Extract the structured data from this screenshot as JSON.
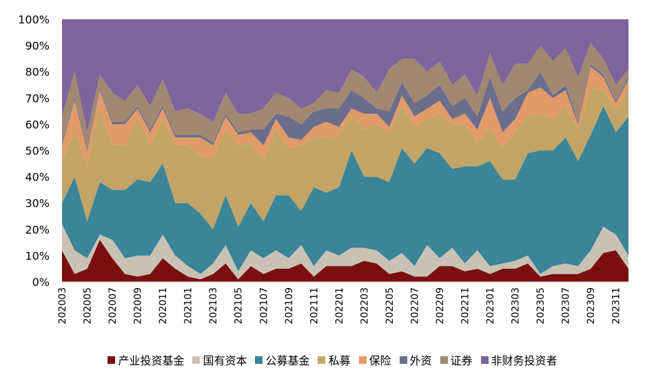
{
  "chart_data": {
    "type": "area",
    "stacked": "percent",
    "x": [
      "202003",
      "202004",
      "202005",
      "202006",
      "202007",
      "202008",
      "202009",
      "202010",
      "202011",
      "202012",
      "202101",
      "202102",
      "202103",
      "202104",
      "202105",
      "202106",
      "202107",
      "202108",
      "202109",
      "202110",
      "202111",
      "202112",
      "202201",
      "202202",
      "202203",
      "202204",
      "202205",
      "202206",
      "202207",
      "202208",
      "202209",
      "202210",
      "202211",
      "202212",
      "202301",
      "202302",
      "202303",
      "202304",
      "202305",
      "202306",
      "202307",
      "202308",
      "202309",
      "202310",
      "202311",
      "202312"
    ],
    "x_tick_labels": [
      "202003",
      "202005",
      "202007",
      "202009",
      "202011",
      "202101",
      "202103",
      "202105",
      "202107",
      "202109",
      "202111",
      "202201",
      "202203",
      "202205",
      "202207",
      "202209",
      "202211",
      "202301",
      "202303",
      "202305",
      "202307",
      "202309",
      "202311"
    ],
    "y_ticks": [
      "0%",
      "10%",
      "20%",
      "30%",
      "40%",
      "50%",
      "60%",
      "70%",
      "80%",
      "90%",
      "100%"
    ],
    "ylim": [
      0,
      100
    ],
    "grid": false,
    "legend_position": "bottom",
    "series": [
      {
        "name": "产业投资基金",
        "color": "#7B0F0F",
        "values": [
          12,
          3,
          5,
          16,
          9,
          3,
          2,
          3,
          9,
          5,
          2,
          1,
          3,
          7,
          1,
          6,
          3,
          5,
          5,
          7,
          2,
          6,
          6,
          6,
          8,
          7,
          3,
          4,
          2,
          2,
          6,
          6,
          4,
          5,
          3,
          5,
          5,
          7,
          2,
          3,
          3,
          3,
          5,
          11,
          12,
          5
        ]
      },
      {
        "name": "国有资本",
        "color": "#C9C2B4",
        "values": [
          10,
          9,
          4,
          2,
          7,
          6,
          8,
          7,
          9,
          5,
          4,
          2,
          4,
          7,
          3,
          6,
          6,
          7,
          4,
          7,
          4,
          6,
          4,
          7,
          5,
          5,
          5,
          7,
          4,
          12,
          3,
          7,
          3,
          7,
          3,
          2,
          3,
          3,
          1,
          3,
          4,
          3,
          7,
          10,
          6,
          5
        ]
      },
      {
        "name": "公募基金",
        "color": "#3A8598",
        "values": [
          8,
          28,
          14,
          20,
          19,
          26,
          29,
          28,
          27,
          20,
          24,
          23,
          13,
          19,
          17,
          18,
          14,
          21,
          24,
          13,
          30,
          22,
          26,
          37,
          27,
          28,
          30,
          40,
          39,
          37,
          40,
          30,
          37,
          32,
          40,
          32,
          31,
          39,
          47,
          44,
          48,
          40,
          44,
          46,
          39,
          53
        ]
      },
      {
        "name": "私募",
        "color": "#C2A467",
        "values": [
          16,
          17,
          21,
          29,
          17,
          17,
          24,
          14,
          17,
          22,
          22,
          22,
          27,
          25,
          31,
          23,
          23,
          25,
          18,
          25,
          19,
          21,
          20,
          13,
          18,
          20,
          19,
          16,
          14,
          11,
          15,
          17,
          16,
          9,
          13,
          12,
          18,
          14,
          14,
          12,
          12,
          12,
          18,
          6,
          8,
          11
        ]
      },
      {
        "name": "保险",
        "color": "#E29A68",
        "values": [
          6,
          12,
          6,
          6,
          8,
          8,
          3,
          5,
          4,
          3,
          3,
          7,
          5,
          5,
          4,
          4,
          6,
          4,
          4,
          2,
          4,
          6,
          3,
          3,
          6,
          4,
          2,
          4,
          4,
          4,
          5,
          2,
          4,
          5,
          11,
          6,
          5,
          9,
          10,
          8,
          6,
          2,
          8,
          5,
          3,
          3
        ]
      },
      {
        "name": "外资",
        "color": "#6B6D8C",
        "values": [
          1,
          1,
          1,
          1,
          1,
          1,
          1,
          1,
          1,
          1,
          1,
          1,
          1,
          1,
          1,
          1,
          6,
          2,
          8,
          6,
          6,
          5,
          7,
          7,
          6,
          2,
          6,
          5,
          5,
          5,
          6,
          5,
          6,
          5,
          8,
          8,
          8,
          1,
          6,
          1,
          2,
          1,
          1,
          1,
          1,
          1
        ]
      },
      {
        "name": "证券",
        "color": "#A28870",
        "values": [
          10,
          10,
          6,
          5,
          11,
          8,
          8,
          9,
          10,
          9,
          10,
          8,
          8,
          8,
          7,
          6,
          8,
          8,
          7,
          6,
          3,
          7,
          6,
          8,
          8,
          6,
          16,
          9,
          17,
          9,
          9,
          8,
          9,
          8,
          9,
          10,
          13,
          10,
          10,
          13,
          14,
          17,
          8,
          6,
          6,
          3
        ]
      },
      {
        "name": "非财务投资者",
        "color": "#7D649C",
        "values": [
          37,
          20,
          43,
          21,
          28,
          31,
          25,
          33,
          23,
          35,
          34,
          36,
          39,
          28,
          36,
          36,
          34,
          28,
          30,
          34,
          32,
          27,
          28,
          19,
          22,
          28,
          19,
          15,
          15,
          20,
          16,
          25,
          21,
          29,
          13,
          25,
          17,
          17,
          10,
          16,
          11,
          22,
          9,
          15,
          25,
          19
        ]
      }
    ]
  }
}
